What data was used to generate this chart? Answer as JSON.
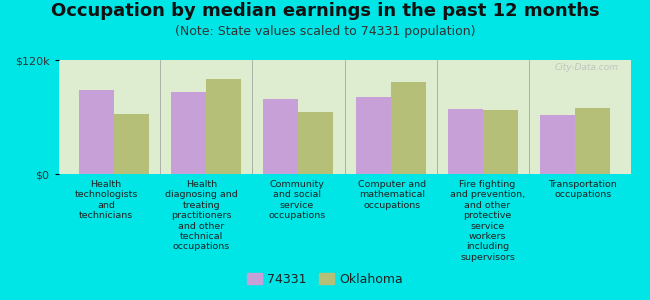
{
  "title": "Occupation by median earnings in the past 12 months",
  "subtitle": "(Note: State values scaled to 74331 population)",
  "background_color": "#00e5e5",
  "plot_bg_color": "#deecd0",
  "categories": [
    "Health\ntechnologists\nand\ntechnicians",
    "Health\ndiagnosing and\ntreating\npractitioners\nand other\ntechnical\noccupations",
    "Community\nand social\nservice\noccupations",
    "Computer and\nmathematical\noccupations",
    "Fire fighting\nand prevention,\nand other\nprotective\nservice\nworkers\nincluding\nsupervisors",
    "Transportation\noccupations"
  ],
  "values_74331": [
    88000,
    86000,
    79000,
    81000,
    68000,
    62000
  ],
  "values_oklahoma": [
    63000,
    100000,
    65000,
    97000,
    67000,
    70000
  ],
  "color_74331": "#c8a0d8",
  "color_oklahoma": "#b5bf78",
  "ylim": [
    0,
    120000
  ],
  "ytick_labels": [
    "$0",
    "$120k"
  ],
  "legend_74331": "74331",
  "legend_oklahoma": "Oklahoma",
  "bar_width": 0.38,
  "title_fontsize": 13,
  "subtitle_fontsize": 9,
  "tick_fontsize": 8,
  "legend_fontsize": 9,
  "watermark": "City-Data.com"
}
